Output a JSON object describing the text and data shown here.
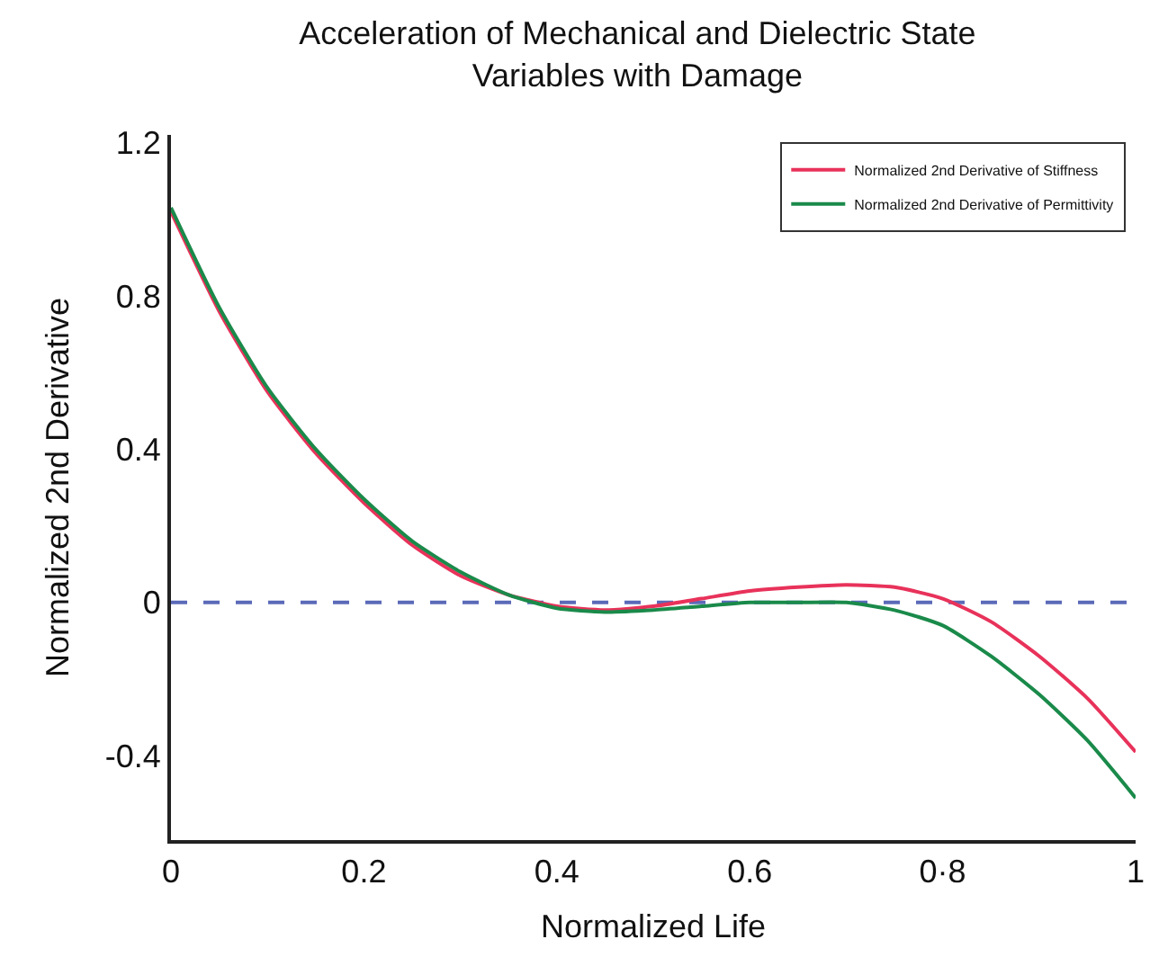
{
  "chart_data": {
    "type": "line",
    "title": "Acceleration of Mechanical and Dielectric State\nVariables with Damage",
    "xlabel": "Normalized Life",
    "ylabel": "Normalized 2nd Derivative",
    "x": [
      0,
      0.05,
      0.1,
      0.15,
      0.2,
      0.25,
      0.3,
      0.35,
      0.4,
      0.45,
      0.5,
      0.55,
      0.6,
      0.65,
      0.7,
      0.75,
      0.8,
      0.85,
      0.9,
      0.95,
      1
    ],
    "series": [
      {
        "name": "Normalized 2nd Derivative of Stiffness",
        "color": "#e8325a",
        "values": [
          1.02,
          0.76,
          0.55,
          0.39,
          0.26,
          0.15,
          0.07,
          0.02,
          -0.01,
          -0.02,
          -0.01,
          0.01,
          0.03,
          0.04,
          0.046,
          0.04,
          0.01,
          -0.05,
          -0.14,
          -0.25,
          -0.39
        ]
      },
      {
        "name": "Normalized 2nd Derivative of Permittivity",
        "color": "#1a8a4a",
        "values": [
          1.03,
          0.77,
          0.56,
          0.4,
          0.27,
          0.16,
          0.08,
          0.02,
          -0.015,
          -0.025,
          -0.02,
          -0.01,
          0.0,
          0.0,
          0.0,
          -0.02,
          -0.06,
          -0.14,
          -0.24,
          -0.36,
          -0.51
        ]
      }
    ],
    "xlim": [
      0,
      1
    ],
    "ylim": [
      -0.62,
      1.22
    ],
    "xticks": [
      0,
      0.2,
      0.4,
      0.6,
      {
        "value": 0.8,
        "label": "0·8"
      },
      1
    ],
    "yticks": [
      -0.4,
      0,
      0.4,
      0.8,
      1.2
    ],
    "ref_lines": [
      {
        "axis": "y",
        "value": 0,
        "color": "#5a6ab8",
        "line_style": "dashed"
      }
    ],
    "legend": "top right",
    "grid": false,
    "marker": "none",
    "line_style": "solid"
  }
}
